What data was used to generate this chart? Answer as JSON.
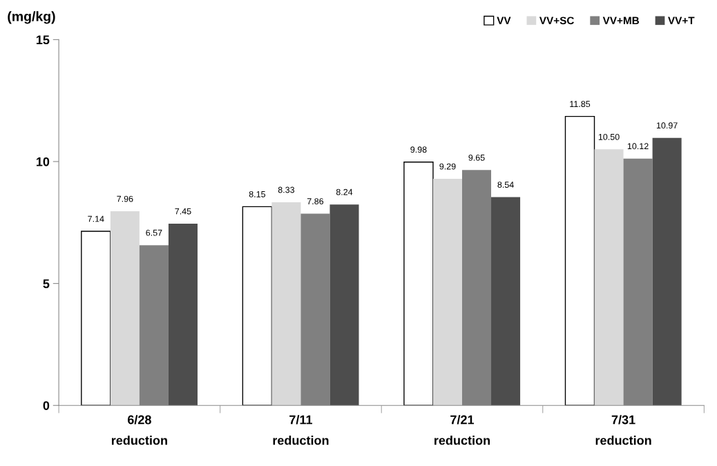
{
  "chart_data": {
    "type": "bar",
    "ylabel": "(mg/kg)",
    "categories": [
      "6/28\nreduction",
      "7/11\nreduction",
      "7/21\nreduction",
      "7/31\nreduction"
    ],
    "series": [
      {
        "name": "VV",
        "color": "#ffffff",
        "values": [
          7.14,
          8.15,
          9.98,
          11.85
        ]
      },
      {
        "name": "VV+SC",
        "color": "#d9d9d9",
        "values": [
          7.96,
          8.33,
          9.29,
          10.5
        ]
      },
      {
        "name": "VV+MB",
        "color": "#808080",
        "values": [
          6.57,
          7.86,
          9.65,
          10.12
        ]
      },
      {
        "name": "VV+T",
        "color": "#4d4d4d",
        "values": [
          7.45,
          8.24,
          8.54,
          10.97
        ]
      }
    ],
    "value_labels": [
      [
        "7.14",
        "8.15",
        "9.98",
        "11.85"
      ],
      [
        "7.96",
        "8.33",
        "9.29",
        "10.50"
      ],
      [
        "6.57",
        "7.86",
        "9.65",
        "10.12"
      ],
      [
        "7.45",
        "8.24",
        "8.54",
        "10.97"
      ]
    ],
    "ylim": [
      0,
      15
    ],
    "yticks": [
      0,
      5,
      10,
      15
    ],
    "grid": false,
    "legend": "top right"
  }
}
